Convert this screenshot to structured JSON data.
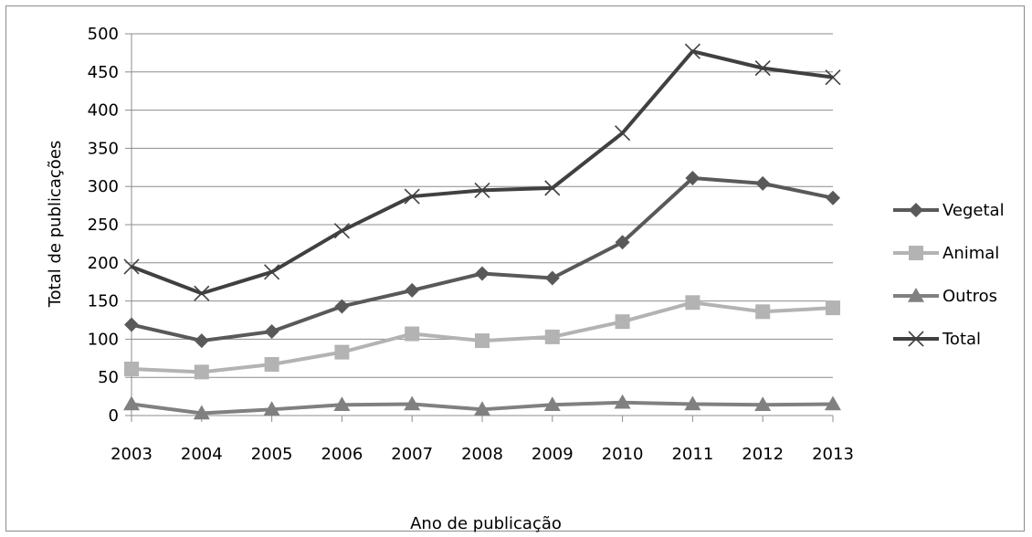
{
  "chart_data": {
    "type": "line",
    "xlabel": "Ano de publicação",
    "ylabel": "Total de publicações",
    "ylim": [
      0,
      500
    ],
    "yticks": [
      0,
      50,
      100,
      150,
      200,
      250,
      300,
      350,
      400,
      450,
      500
    ],
    "categories": [
      "2003",
      "2004",
      "2005",
      "2006",
      "2007",
      "2008",
      "2009",
      "2010",
      "2011",
      "2012",
      "2013"
    ],
    "grid": "horizontal",
    "legend_position": "right",
    "series": [
      {
        "name": "Vegetal",
        "marker": "diamond",
        "color": "#595959",
        "values": [
          119,
          98,
          110,
          143,
          164,
          186,
          180,
          227,
          311,
          304,
          285
        ]
      },
      {
        "name": "Animal",
        "marker": "square",
        "color": "#b3b3b3",
        "values": [
          61,
          57,
          67,
          83,
          107,
          98,
          103,
          123,
          148,
          136,
          141
        ]
      },
      {
        "name": "Outros",
        "marker": "triangle",
        "color": "#808080",
        "values": [
          15,
          3,
          8,
          14,
          15,
          8,
          14,
          17,
          15,
          14,
          15
        ]
      },
      {
        "name": "Total",
        "marker": "x",
        "color": "#404040",
        "values": [
          195,
          160,
          188,
          242,
          287,
          295,
          298,
          370,
          477,
          455,
          443
        ]
      }
    ]
  }
}
